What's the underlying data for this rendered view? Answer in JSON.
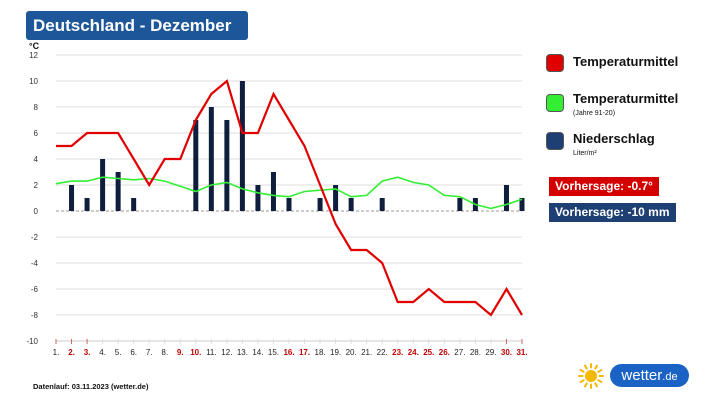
{
  "title": "Deutschland - Dezember",
  "chart_data": {
    "type": "bar",
    "unit": "°C",
    "ylim": [
      -10,
      12
    ],
    "yticks": [
      12,
      10,
      8,
      6,
      4,
      2,
      0,
      -2,
      -4,
      -6,
      -8,
      -10
    ],
    "categories": [
      "1.",
      "2.",
      "3.",
      "4.",
      "5.",
      "6.",
      "7.",
      "8.",
      "9.",
      "10.",
      "11.",
      "12.",
      "13.",
      "14.",
      "15.",
      "16.",
      "17.",
      "18.",
      "19.",
      "20.",
      "21.",
      "22.",
      "23.",
      "24.",
      "25.",
      "26.",
      "27.",
      "28.",
      "29.",
      "30.",
      "31."
    ],
    "weekend_days": [
      2,
      3,
      9,
      10,
      16,
      17,
      23,
      24,
      25,
      26,
      30,
      31
    ],
    "series": [
      {
        "name": "Temperaturmittel",
        "type": "line",
        "color": "#e00000",
        "values": [
          5,
          5,
          6,
          6,
          6,
          4,
          2,
          4,
          4,
          7,
          9,
          10,
          6,
          6,
          9,
          7,
          5,
          2,
          -1,
          -3,
          -3,
          -4,
          -7,
          -7,
          -6,
          -7,
          -7,
          -7,
          -8,
          -6,
          -8
        ]
      },
      {
        "name": "Temperaturmittel",
        "subtitle": "(Jahre 91-20)",
        "type": "line",
        "color": "#33ee33",
        "values": [
          2.1,
          2.3,
          2.3,
          2.6,
          2.5,
          2.4,
          2.5,
          2.3,
          1.9,
          1.5,
          2.0,
          2.2,
          1.7,
          1.4,
          1.2,
          1.1,
          1.5,
          1.6,
          1.7,
          1.1,
          1.2,
          2.3,
          2.6,
          2.2,
          2.0,
          1.2,
          1.1,
          0.5,
          0.2,
          0.5,
          0.9
        ]
      },
      {
        "name": "Niederschlag",
        "subtitle": "Liter/m²",
        "type": "bar",
        "color": "#0f1e3d",
        "values": [
          0,
          2,
          1,
          4,
          3,
          1,
          0,
          0,
          0,
          7,
          8,
          7,
          10,
          2,
          3,
          1,
          0,
          1,
          2,
          1,
          0,
          1,
          0,
          0,
          0,
          0,
          1,
          1,
          0,
          2,
          1
        ]
      }
    ]
  },
  "legend": [
    {
      "label": "Temperaturmittel",
      "sub": "",
      "color": "#e00000"
    },
    {
      "label": "Temperaturmittel",
      "sub": "(Jahre 91-20)",
      "color": "#33ee33"
    },
    {
      "label": "Niederschlag",
      "sub": "Liter/m²",
      "color": "#1e3f73"
    }
  ],
  "forecast": {
    "temp": {
      "label": "Vorhersage: -0.7°",
      "color": "#d40000"
    },
    "rain": {
      "label": "Vorhersage: -10 mm",
      "color": "#1e3f73"
    }
  },
  "footer": "Datenlauf: 03.11.2023 (wetter.de)",
  "logo": {
    "text": "wetter",
    "dot": ".de",
    "sun_color": "#f5b800",
    "pill_color": "#1a63c4"
  }
}
